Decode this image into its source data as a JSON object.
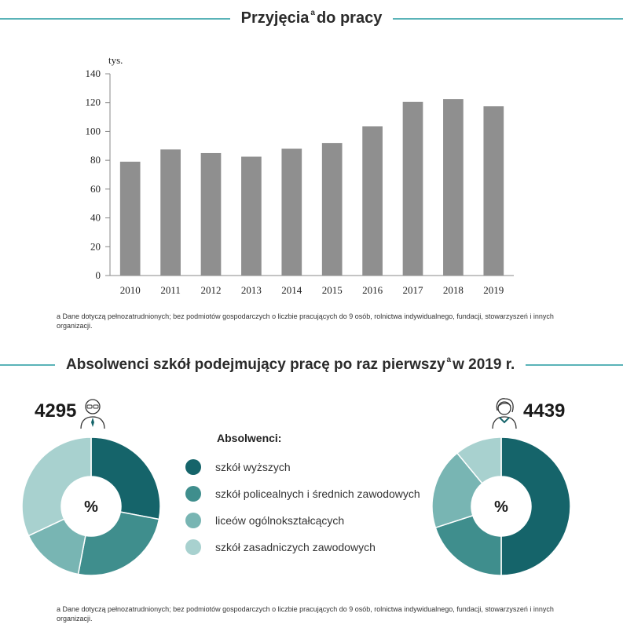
{
  "top_section": {
    "title_pre": "Przyjęcia",
    "title_sup": "a",
    "title_post": "do pracy"
  },
  "chart_data": [
    {
      "type": "bar",
      "ylabel": "tys.",
      "categories": [
        "2010",
        "2011",
        "2012",
        "2013",
        "2014",
        "2015",
        "2016",
        "2017",
        "2018",
        "2019"
      ],
      "values": [
        79,
        87.5,
        85,
        82.5,
        88,
        92,
        103.5,
        120.5,
        122.5,
        117.5
      ],
      "yticks": [
        "0",
        "20",
        "40",
        "60",
        "80",
        "100",
        "120",
        "140"
      ],
      "ylim": [
        0,
        140
      ],
      "grid": false,
      "bar_color": "#8f8f8f"
    },
    {
      "type": "pie",
      "variant": "donut",
      "total": "4295",
      "center_label": "%",
      "slices": [
        {
          "category": "szkół wyższych",
          "value": 28
        },
        {
          "category": "szkół policealnych i średnich zawodowych",
          "value": 25
        },
        {
          "category": "liceów ogólnokształcących",
          "value": 15
        },
        {
          "category": "szkół zasadniczych zawodowych",
          "value": 32
        }
      ]
    },
    {
      "type": "pie",
      "variant": "donut",
      "total": "4439",
      "center_label": "%",
      "slices": [
        {
          "category": "szkół wyższych",
          "value": 50
        },
        {
          "category": "szkół policealnych i średnich zawodowych",
          "value": 20
        },
        {
          "category": "liceów ogólnokształcących",
          "value": 19
        },
        {
          "category": "szkół zasadniczych zawodowych",
          "value": 11
        }
      ]
    }
  ],
  "footnote_1": "a Dane dotyczą pełnozatrudnionych; bez podmiotów gospodarczych o liczbie pracujących do 9 osób, rolnictwa indywidualnego, fundacji, stowarzyszeń i innych organizacji.",
  "bottom_section": {
    "title_pre": "Absolwenci szkół podejmujący pracę po raz pierwszy",
    "title_sup": "a",
    "title_post": "w 2019 r."
  },
  "legend": {
    "title": "Absolwenci:",
    "items": [
      {
        "label": "szkół wyższych",
        "color": "#15646a"
      },
      {
        "label": "szkół policealnych i średnich zawodowych",
        "color": "#3f8e8d"
      },
      {
        "label": "liceów ogólnokształcących",
        "color": "#78b5b3"
      },
      {
        "label": "szkół zasadniczych zawodowych",
        "color": "#a8d1cf"
      }
    ]
  },
  "icons": {
    "left": "man-icon",
    "right": "woman-icon"
  },
  "footnote_2": "a Dane dotyczą pełnozatrudnionych; bez podmiotów gospodarczych o liczbie pracujących do 9 osób, rolnictwa indywidualnego, fundacji, stowarzyszeń i innych organizacji."
}
